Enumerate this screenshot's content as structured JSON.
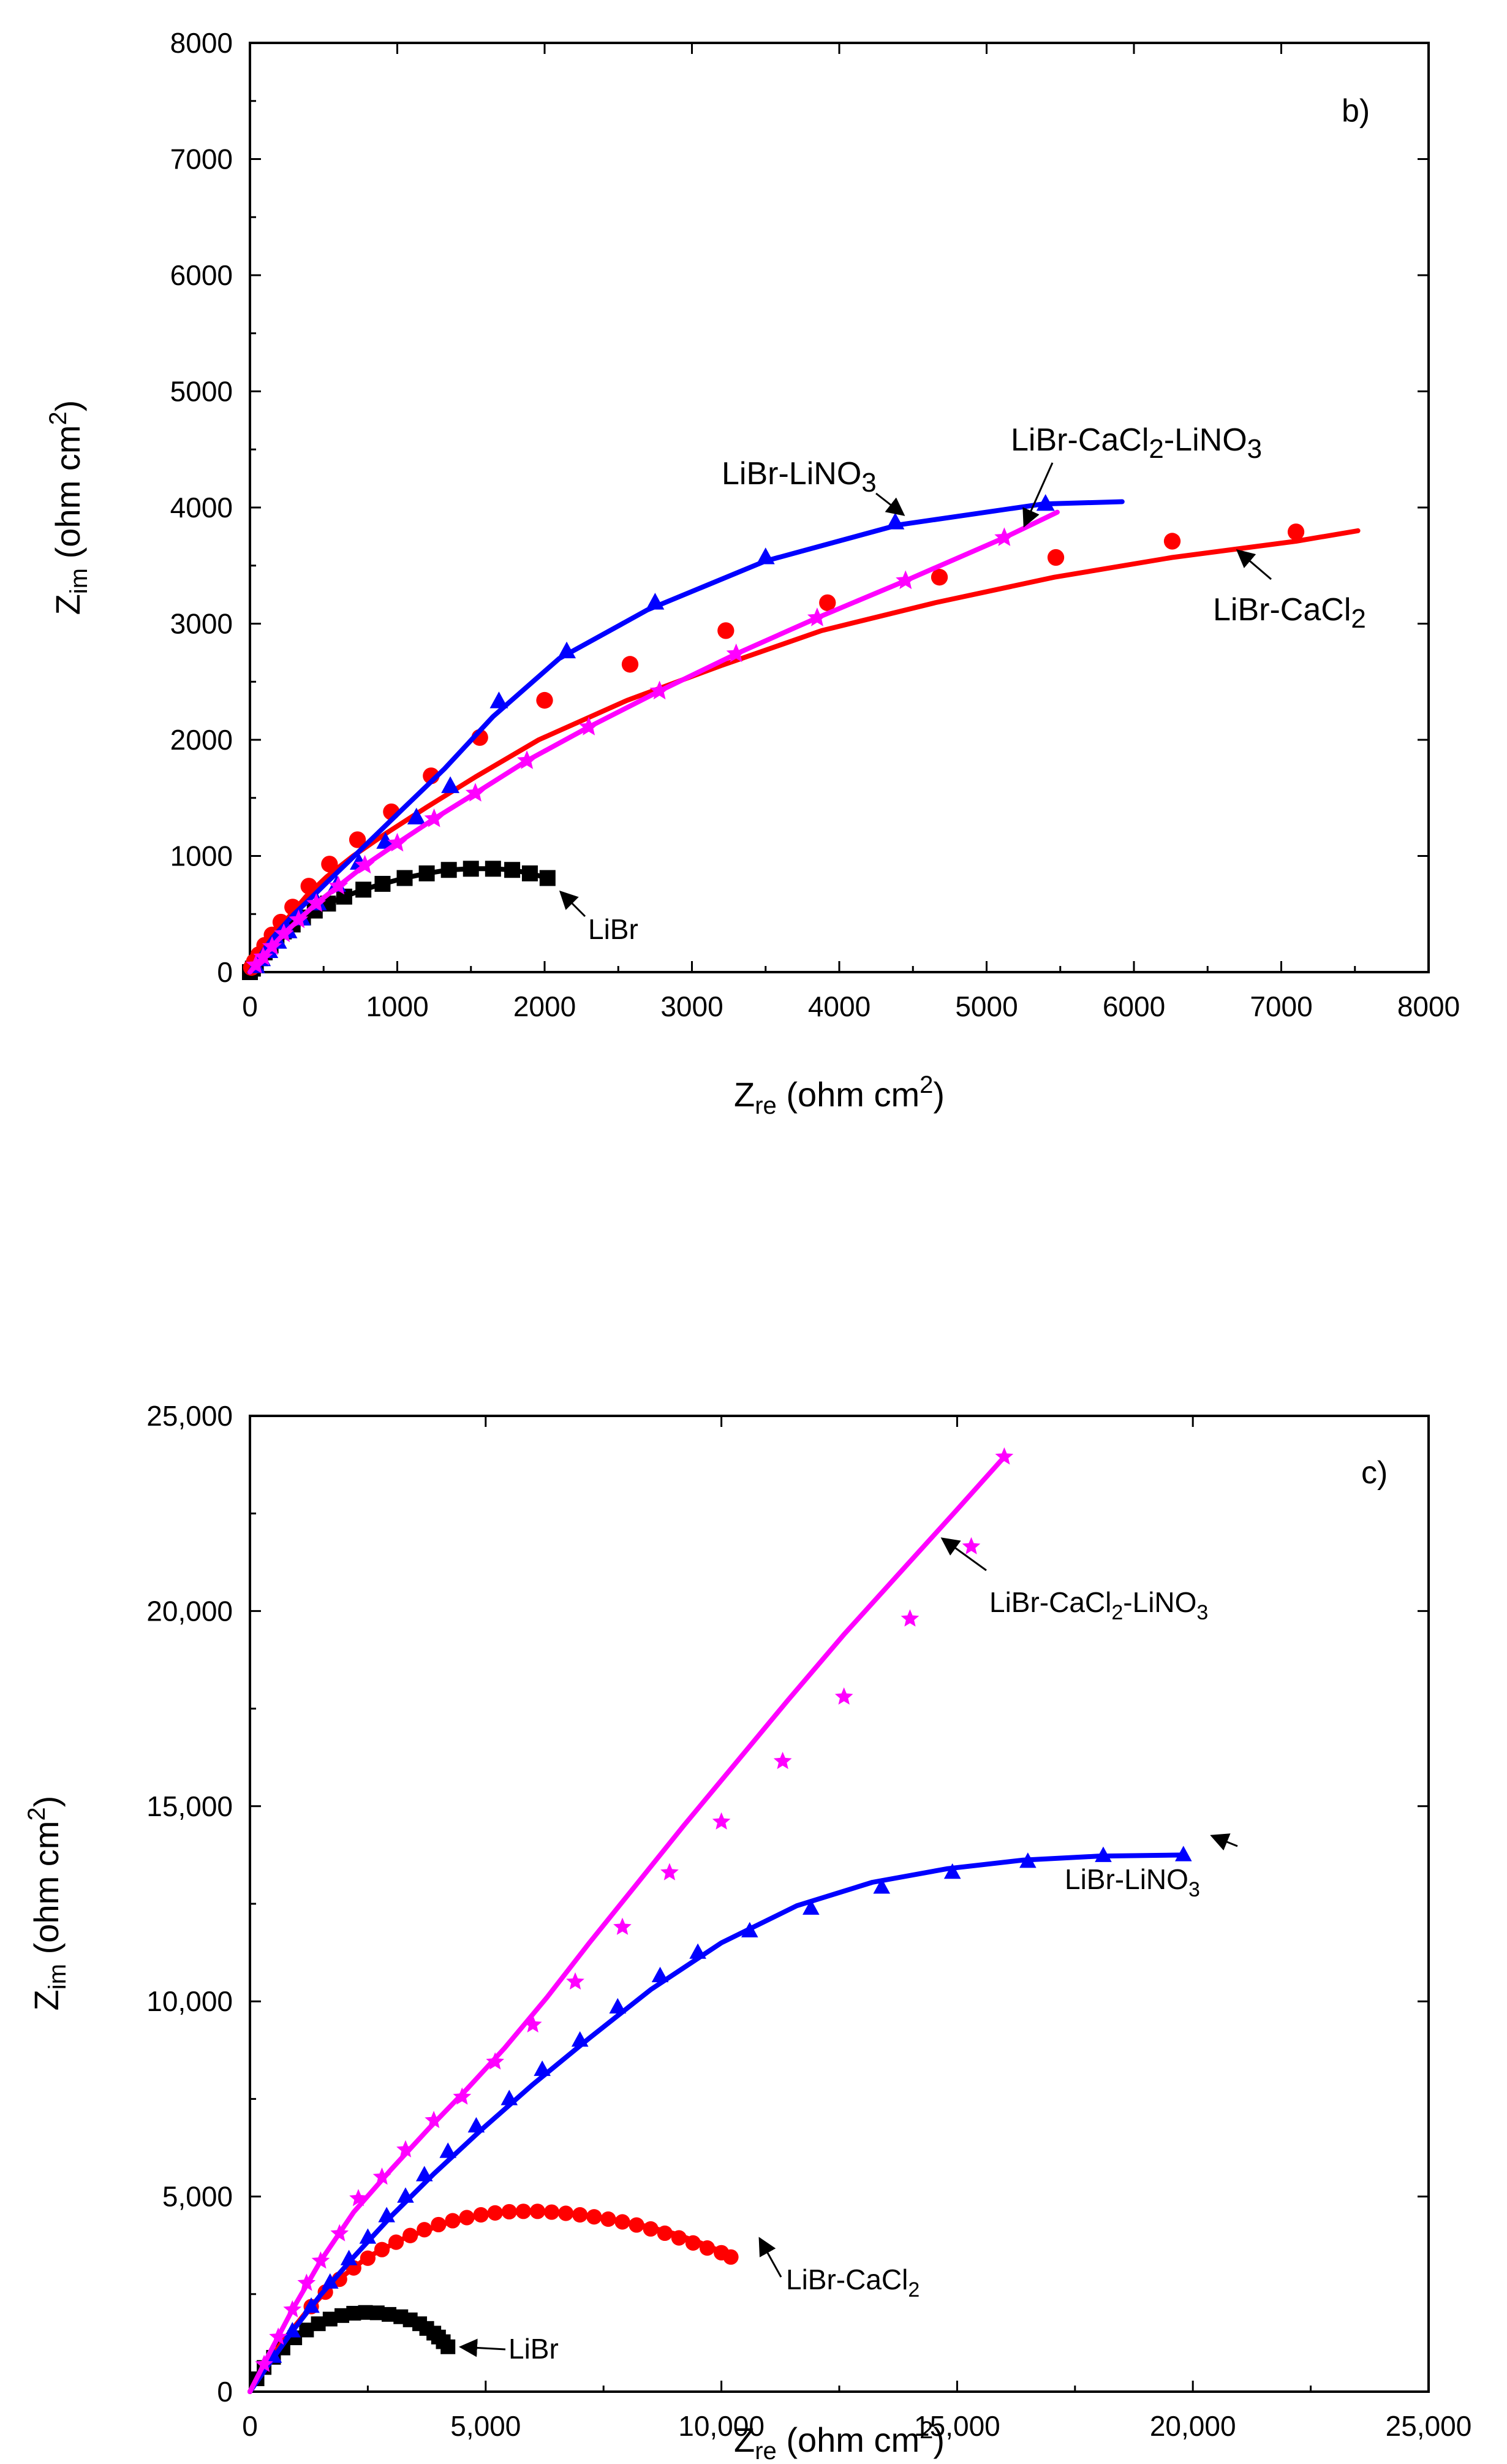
{
  "chart_data": [
    {
      "type": "line",
      "panel_label": "b)",
      "xlabel": {
        "main": "Z",
        "sub": "re",
        "rest": " (ohm cm",
        "sup": "2",
        "end": ")"
      },
      "ylabel": {
        "main": "Z",
        "sub": "im",
        "rest": " (ohm cm",
        "sup": "2",
        "end": ")"
      },
      "xlim": [
        0,
        8000
      ],
      "ylim": [
        0,
        8000
      ],
      "xticks": [
        "0",
        "1000",
        "2000",
        "3000",
        "4000",
        "5000",
        "6000",
        "7000",
        "8000"
      ],
      "yticks": [
        "0",
        "1000",
        "2000",
        "3000",
        "4000",
        "5000",
        "6000",
        "7000",
        "8000"
      ],
      "grid": false,
      "series": [
        {
          "name": "LiBr",
          "color": "#000000",
          "marker": "square",
          "x": [
            0,
            20,
            40,
            70,
            100,
            140,
            180,
            230,
            290,
            360,
            440,
            530,
            640,
            770,
            900,
            1050,
            1200,
            1350,
            1500,
            1650,
            1780,
            1900,
            2020
          ],
          "y": [
            0,
            30,
            70,
            120,
            170,
            230,
            290,
            350,
            410,
            470,
            530,
            590,
            650,
            710,
            760,
            810,
            850,
            880,
            890,
            890,
            880,
            850,
            810
          ]
        },
        {
          "name": "LiBr-CaCl2",
          "color": "#ff0000",
          "marker": "circle",
          "x": [
            0,
            20,
            50,
            90,
            140,
            200,
            280,
            380,
            520,
            700,
            930,
            1200,
            1530,
            1960,
            2560,
            3200,
            3880,
            4650,
            5460,
            6260,
            7100,
            7520
          ],
          "y": [
            0,
            50,
            110,
            180,
            270,
            380,
            500,
            650,
            820,
            1000,
            1200,
            1420,
            1680,
            2000,
            2340,
            2640,
            2940,
            3180,
            3400,
            3570,
            3710,
            3800
          ],
          "marker_x": [
            10,
            30,
            60,
            100,
            150,
            210,
            290,
            400,
            540,
            730,
            960,
            1230,
            1560,
            2000,
            2580,
            3230,
            3920,
            4680,
            5470,
            6260,
            7100
          ],
          "marker_y": [
            40,
            90,
            150,
            230,
            320,
            430,
            560,
            740,
            930,
            1140,
            1380,
            1690,
            2020,
            2340,
            2650,
            2940,
            3180,
            3400,
            3570,
            3710,
            3790
          ]
        },
        {
          "name": "LiBr-LiNO3",
          "color": "#0000ff",
          "marker": "triangle",
          "x": [
            0,
            30,
            60,
            100,
            150,
            220,
            300,
            400,
            520,
            660,
            830,
            1050,
            1320,
            1650,
            2100,
            2700,
            3500,
            4400,
            5380,
            5920
          ],
          "y": [
            0,
            60,
            120,
            200,
            290,
            390,
            500,
            620,
            770,
            940,
            1150,
            1420,
            1750,
            2200,
            2700,
            3120,
            3540,
            3850,
            4030,
            4050
          ],
          "marker_x": [
            40,
            80,
            130,
            190,
            260,
            350,
            460,
            590,
            740,
            920,
            1130,
            1360,
            1690,
            2150,
            2750,
            3500,
            4380,
            5400
          ],
          "marker_y": [
            50,
            110,
            180,
            260,
            350,
            460,
            590,
            750,
            940,
            1120,
            1330,
            1600,
            2330,
            2760,
            3180,
            3570,
            3870,
            4030
          ]
        },
        {
          "name": "LiBr-CaCl2-LiNO3",
          "color": "#ff00ff",
          "marker": "star",
          "x": [
            0,
            40,
            90,
            150,
            230,
            330,
            450,
            600,
            780,
            1000,
            1250,
            1530,
            1880,
            2300,
            2780,
            3300,
            3850,
            4450,
            5120,
            5480
          ],
          "y": [
            0,
            60,
            130,
            220,
            330,
            450,
            590,
            740,
            920,
            1110,
            1320,
            1540,
            1820,
            2110,
            2420,
            2740,
            3050,
            3370,
            3740,
            3960
          ],
          "marker_x": [
            40,
            90,
            150,
            230,
            330,
            450,
            600,
            780,
            1000,
            1250,
            1530,
            1880,
            2300,
            2780,
            3300,
            3850,
            4450,
            5120
          ],
          "marker_y": [
            60,
            130,
            220,
            330,
            450,
            590,
            740,
            920,
            1110,
            1320,
            1540,
            1820,
            2110,
            2420,
            2740,
            3050,
            3370,
            3740
          ]
        }
      ],
      "annotations": [
        {
          "label": "LiBr",
          "parts": [
            "LiBr"
          ]
        },
        {
          "label": "LiBr-LiNO3",
          "parts": [
            "LiBr-LiNO",
            "3"
          ]
        },
        {
          "label": "LiBr-CaCl2-LiNO3",
          "parts": [
            "LiBr-CaCl",
            "2",
            "-LiNO",
            "3"
          ]
        },
        {
          "label": "LiBr-CaCl2",
          "parts": [
            "LiBr-CaCl",
            "2"
          ]
        }
      ]
    },
    {
      "type": "line",
      "panel_label": "c)",
      "xlabel": {
        "main": "Z",
        "sub": "re",
        "rest": " (ohm cm",
        "sup": "2",
        "end": ")"
      },
      "ylabel": {
        "main": "Z",
        "sub": "im",
        "rest": " (ohm cm",
        "sup": "2",
        "end": ")"
      },
      "xlim": [
        0,
        25000
      ],
      "ylim": [
        0,
        25000
      ],
      "xticks": [
        "0",
        "5,000",
        "10,000",
        "15,000",
        "20,000",
        "25,000"
      ],
      "yticks": [
        "0",
        "5,000",
        "10,000",
        "15,000",
        "20,000",
        "25,000"
      ],
      "grid": false,
      "series": [
        {
          "name": "LiBr",
          "color": "#000000",
          "marker": "square",
          "x": [
            0,
            150,
            350,
            600,
            900,
            1250,
            1650,
            2050,
            2450,
            2850,
            3200,
            3500,
            3750,
            3950,
            4100,
            4200
          ],
          "y": [
            0,
            330,
            700,
            1050,
            1370,
            1640,
            1840,
            1970,
            2030,
            2010,
            1920,
            1780,
            1600,
            1430,
            1270,
            1150
          ],
          "marker_x": [
            150,
            300,
            500,
            700,
            950,
            1200,
            1450,
            1700,
            1950,
            2200,
            2450,
            2700,
            2950,
            3200,
            3400,
            3600,
            3750,
            3900,
            4000,
            4100,
            4200
          ],
          "marker_y": [
            330,
            620,
            880,
            1120,
            1380,
            1580,
            1740,
            1860,
            1950,
            2010,
            2030,
            2020,
            1980,
            1920,
            1840,
            1740,
            1620,
            1500,
            1400,
            1280,
            1150
          ]
        },
        {
          "name": "LiBr-CaCl2",
          "color": "#ff0000",
          "marker": "circle",
          "x": [
            0,
            300,
            700,
            1200,
            1800,
            2500,
            3300,
            4200,
            5100,
            6000,
            6900,
            7700,
            8400,
            9000,
            9500,
            9900,
            10200
          ],
          "y": [
            0,
            600,
            1300,
            2050,
            2800,
            3450,
            3950,
            4330,
            4560,
            4620,
            4560,
            4420,
            4240,
            4050,
            3840,
            3640,
            3450
          ],
          "marker_x": [
            1300,
            1600,
            1900,
            2200,
            2500,
            2800,
            3100,
            3400,
            3700,
            4000,
            4300,
            4600,
            4900,
            5200,
            5500,
            5800,
            6100,
            6400,
            6700,
            7000,
            7300,
            7600,
            7900,
            8200,
            8500,
            8800,
            9100,
            9400,
            9700,
            10000,
            10200
          ],
          "marker_y": [
            2180,
            2550,
            2880,
            3170,
            3420,
            3640,
            3830,
            4000,
            4150,
            4280,
            4380,
            4460,
            4530,
            4580,
            4610,
            4620,
            4620,
            4600,
            4570,
            4530,
            4480,
            4420,
            4350,
            4270,
            4170,
            4060,
            3940,
            3810,
            3680,
            3560,
            3450
          ]
        },
        {
          "name": "LiBr-LiNO3",
          "color": "#0000ff",
          "marker": "triangle",
          "x": [
            0,
            400,
            900,
            1500,
            2200,
            3000,
            3900,
            4900,
            6000,
            7200,
            8500,
            10000,
            11600,
            13200,
            14800,
            16400,
            18000,
            19800
          ],
          "y": [
            0,
            700,
            1550,
            2480,
            3450,
            4500,
            5580,
            6700,
            7870,
            9060,
            10300,
            11500,
            12450,
            13050,
            13400,
            13620,
            13720,
            13750
          ],
          "marker_x": [
            500,
            900,
            1300,
            1700,
            2100,
            2500,
            2900,
            3300,
            3700,
            4200,
            4800,
            5500,
            6200,
            7000,
            7800,
            8700,
            9500,
            10600,
            11900,
            13400,
            14900,
            16500,
            18100,
            19800
          ],
          "marker_y": [
            900,
            1550,
            2180,
            2800,
            3400,
            3950,
            4500,
            5000,
            5550,
            6150,
            6800,
            7500,
            8250,
            9000,
            9850,
            10650,
            11250,
            11800,
            12380,
            12920,
            13300,
            13580,
            13730,
            13750
          ]
        },
        {
          "name": "LiBr-CaCl2-LiNO3",
          "color": "#ff00ff",
          "marker": "star",
          "x": [
            0,
            400,
            900,
            1500,
            2200,
            3000,
            3800,
            4600,
            5400,
            6300,
            7200,
            8200,
            9200,
            10300,
            11400,
            12600,
            13800,
            15000,
            16000
          ],
          "y": [
            0,
            950,
            2100,
            3350,
            4600,
            5700,
            6750,
            7750,
            8800,
            10100,
            11500,
            13000,
            14500,
            16100,
            17700,
            19400,
            21000,
            22600,
            23950
          ],
          "marker_x": [
            300,
            600,
            900,
            1200,
            1500,
            1900,
            2300,
            2800,
            3300,
            3900,
            4500,
            5200,
            6000,
            6900,
            7900,
            8900,
            10000,
            11300,
            12600,
            14000,
            15300,
            16000
          ],
          "marker_y": [
            700,
            1400,
            2100,
            2780,
            3350,
            4050,
            4950,
            5500,
            6200,
            6950,
            7550,
            8450,
            9400,
            10500,
            11900,
            13300,
            14600,
            16150,
            17800,
            19800,
            21650,
            23950
          ]
        }
      ],
      "annotations": [
        {
          "label": "LiBr",
          "parts": [
            "LiBr"
          ]
        },
        {
          "label": "LiBr-CaCl2",
          "parts": [
            "LiBr-CaCl",
            "2"
          ]
        },
        {
          "label": "LiBr-LiNO3",
          "parts": [
            "LiBr-LiNO",
            "3"
          ]
        },
        {
          "label": "LiBr-CaCl2-LiNO3",
          "parts": [
            "LiBr-CaCl",
            "2",
            "-LiNO",
            "3"
          ]
        }
      ]
    }
  ]
}
